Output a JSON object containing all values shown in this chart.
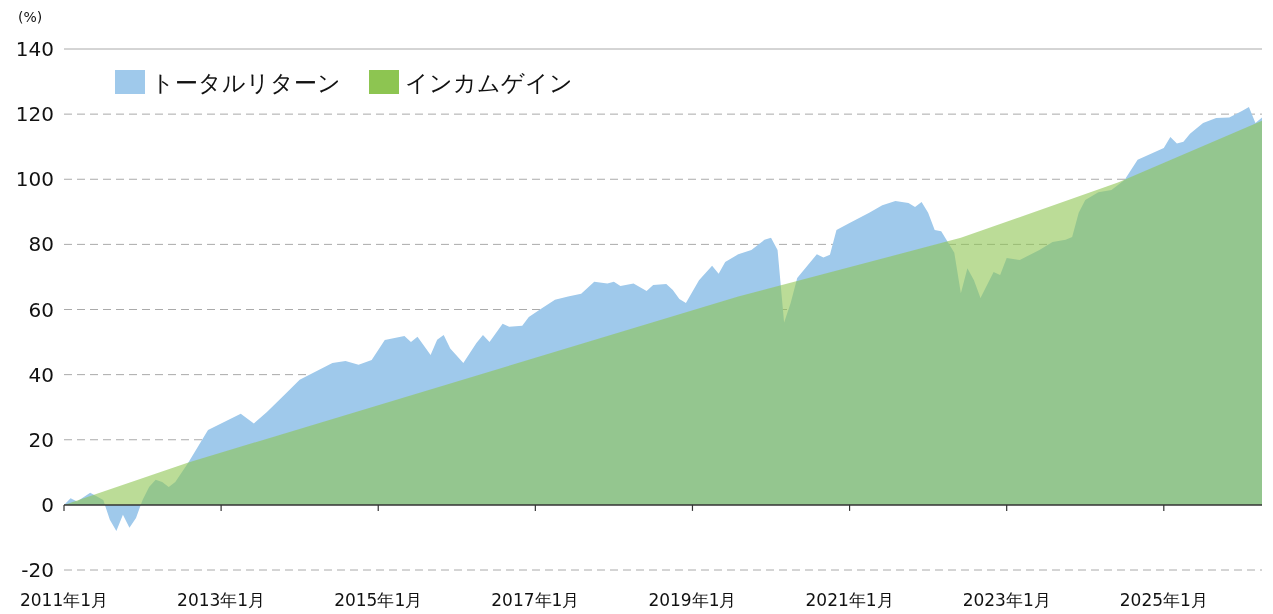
{
  "chart_data": {
    "type": "area",
    "ylabel": "(%)",
    "xlim": [
      "2011-01",
      "2026-04"
    ],
    "xticks": [
      {
        "value": "2011-01",
        "label": "2011年1月"
      },
      {
        "value": "2013-01",
        "label": "2013年1月"
      },
      {
        "value": "2015-01",
        "label": "2015年1月"
      },
      {
        "value": "2017-01",
        "label": "2017年1月"
      },
      {
        "value": "2019-01",
        "label": "2019年1月"
      },
      {
        "value": "2021-01",
        "label": "2021年1月"
      },
      {
        "value": "2023-01",
        "label": "2023年1月"
      },
      {
        "value": "2025-01",
        "label": "2025年1月"
      }
    ],
    "ylim": [
      -20,
      140
    ],
    "yticks": [
      -20,
      0,
      20,
      40,
      60,
      80,
      100,
      120,
      140
    ],
    "grid": "y",
    "legend": "top left",
    "series": [
      {
        "name": "トータルリターン",
        "color": "#9fc9eb",
        "x": [
          "2011-01",
          "2011-02",
          "2011-03",
          "2011-05",
          "2011-07",
          "2011-08",
          "2011-09",
          "2011-10",
          "2011-11",
          "2011-12",
          "2012-01",
          "2012-02",
          "2012-03",
          "2012-04",
          "2012-05",
          "2012-06",
          "2012-08",
          "2012-11",
          "2013-04",
          "2013-06",
          "2013-08",
          "2013-11",
          "2014-01",
          "2014-06",
          "2014-08",
          "2014-10",
          "2014-12",
          "2015-02",
          "2015-05",
          "2015-06",
          "2015-07",
          "2015-09",
          "2015-10",
          "2015-11",
          "2015-12",
          "2016-02",
          "2016-04",
          "2016-05",
          "2016-06",
          "2016-08",
          "2016-09",
          "2016-11",
          "2016-12",
          "2017-02",
          "2017-04",
          "2017-06",
          "2017-08",
          "2017-10",
          "2017-12",
          "2018-01",
          "2018-02",
          "2018-04",
          "2018-06",
          "2018-07",
          "2018-09",
          "2018-10",
          "2018-11",
          "2018-12",
          "2019-02",
          "2019-04",
          "2019-05",
          "2019-06",
          "2019-08",
          "2019-10",
          "2019-12",
          "2020-01",
          "2020-02",
          "2020-03",
          "2020-04",
          "2020-05",
          "2020-08",
          "2020-09",
          "2020-10",
          "2020-11",
          "2021-01",
          "2021-04",
          "2021-06",
          "2021-08",
          "2021-10",
          "2021-11",
          "2021-12",
          "2022-01",
          "2022-02",
          "2022-03",
          "2022-04",
          "2022-05",
          "2022-06",
          "2022-07",
          "2022-08",
          "2022-09",
          "2022-11",
          "2022-12",
          "2023-01",
          "2023-03",
          "2023-06",
          "2023-08",
          "2023-10",
          "2023-11",
          "2023-12",
          "2024-01",
          "2024-03",
          "2024-05",
          "2024-07",
          "2024-09",
          "2025-01",
          "2025-02",
          "2025-03",
          "2025-04",
          "2025-05",
          "2025-07",
          "2025-09",
          "2025-11",
          "2026-01",
          "2026-02",
          "2026-03",
          "2026-04"
        ],
        "values": [
          0,
          2,
          1,
          3.7,
          1.5,
          -4.6,
          -8,
          -3,
          -7,
          -4,
          1.5,
          5.5,
          7.7,
          7,
          5.5,
          7,
          13,
          23,
          28,
          25,
          28.5,
          34.4,
          38.4,
          43.6,
          44.2,
          43,
          44.5,
          50.6,
          51.9,
          50,
          51.6,
          46,
          50.7,
          52.2,
          48,
          43.6,
          49.7,
          52.2,
          50,
          55.6,
          54.7,
          55,
          57.7,
          60.4,
          63,
          64,
          64.8,
          68.5,
          68,
          68.5,
          67.2,
          68,
          65.7,
          67.5,
          67.8,
          66,
          63.2,
          62,
          69,
          73.4,
          71,
          74.6,
          77,
          78.3,
          81.4,
          82,
          78.3,
          56,
          62,
          69.7,
          77,
          76,
          76.8,
          84.4,
          86.6,
          89.7,
          92,
          93.3,
          92.7,
          91.5,
          93,
          89.7,
          84.4,
          84,
          80.7,
          77.4,
          65,
          72.7,
          69,
          63.5,
          71.5,
          70.6,
          75.8,
          75.2,
          78.3,
          80.7,
          81.4,
          82.3,
          89.7,
          93.6,
          96,
          96.7,
          99.8,
          106,
          109.6,
          113,
          111,
          111.5,
          114,
          117.3,
          118.8,
          119,
          121,
          122.2,
          117.3,
          119
        ]
      },
      {
        "name": "インカムゲイン",
        "color": "#8dc551",
        "x": [
          "2011-01",
          "2012-08",
          "2019-08",
          "2022-06",
          "2024-06",
          "2026-04"
        ],
        "values": [
          0,
          13,
          64,
          82,
          99,
          118
        ]
      }
    ]
  }
}
